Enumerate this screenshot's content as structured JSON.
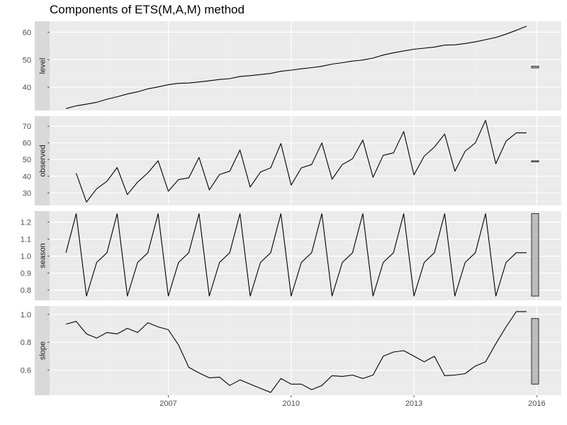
{
  "chart_data": {
    "type": "line",
    "title": "Components of ETS(M,A,M) method",
    "x_ticks": [
      "2007",
      "2010",
      "2013",
      "2016"
    ],
    "xlim": [
      2004.1,
      2016.6
    ],
    "panels": [
      {
        "name": "level",
        "ylim": [
          31.5,
          64.0
        ],
        "y_ticks": [
          40,
          50,
          60
        ],
        "scale_bar": [
          47.0,
          47.6
        ],
        "x": [
          2004.5,
          2004.75,
          2005,
          2005.25,
          2005.5,
          2005.75,
          2006,
          2006.25,
          2006.5,
          2006.75,
          2007,
          2007.25,
          2007.5,
          2007.75,
          2008,
          2008.25,
          2008.5,
          2008.75,
          2009,
          2009.25,
          2009.5,
          2009.75,
          2010,
          2010.25,
          2010.5,
          2010.75,
          2011,
          2011.25,
          2011.5,
          2011.75,
          2012,
          2012.25,
          2012.5,
          2012.75,
          2013,
          2013.25,
          2013.5,
          2013.75,
          2014,
          2014.25,
          2014.5,
          2014.75,
          2015,
          2015.25,
          2015.5,
          2015.75
        ],
        "values": [
          32.2,
          33.2,
          33.8,
          34.5,
          35.6,
          36.5,
          37.5,
          38.3,
          39.4,
          40.1,
          40.9,
          41.4,
          41.5,
          41.9,
          42.3,
          42.8,
          43.1,
          43.9,
          44.2,
          44.6,
          45.0,
          45.8,
          46.2,
          46.7,
          47.1,
          47.6,
          48.4,
          48.9,
          49.5,
          49.9,
          50.6,
          51.7,
          52.5,
          53.2,
          53.8,
          54.2,
          54.6,
          55.3,
          55.4,
          55.9,
          56.5,
          57.3,
          58.1,
          59.3,
          60.7,
          62.2
        ]
      },
      {
        "name": "observed",
        "ylim": [
          22.5,
          76.0
        ],
        "y_ticks": [
          30,
          40,
          50,
          60,
          70
        ],
        "scale_bar": [
          48.6,
          49.3
        ],
        "x": [
          2004.75,
          2005,
          2005.25,
          2005.5,
          2005.75,
          2006,
          2006.25,
          2006.5,
          2006.75,
          2007,
          2007.25,
          2007.5,
          2007.75,
          2008,
          2008.25,
          2008.5,
          2008.75,
          2009,
          2009.25,
          2009.5,
          2009.75,
          2010,
          2010.25,
          2010.5,
          2010.75,
          2011,
          2011.25,
          2011.5,
          2011.75,
          2012,
          2012.25,
          2012.5,
          2012.75,
          2013,
          2013.25,
          2013.5,
          2013.75,
          2014,
          2014.25,
          2014.5,
          2014.75,
          2015,
          2015.25,
          2015.5,
          2015.75
        ],
        "values": [
          41.8,
          24.5,
          32.5,
          37.0,
          45.2,
          29.0,
          36.5,
          42.0,
          49.3,
          31.0,
          38.0,
          39.0,
          51.3,
          31.8,
          41.0,
          43.0,
          55.7,
          33.5,
          42.5,
          45.0,
          59.6,
          34.7,
          45.0,
          47.0,
          60.0,
          38.2,
          47.0,
          50.5,
          61.7,
          39.3,
          52.5,
          54.0,
          66.8,
          40.8,
          52.0,
          57.5,
          65.3,
          43.0,
          55.0,
          60.0,
          73.5,
          47.5,
          61.0,
          66.0,
          66.0
        ]
      },
      {
        "name": "season",
        "ylim": [
          0.74,
          1.265
        ],
        "y_ticks": [
          0.8,
          0.9,
          1.0,
          1.1,
          1.2
        ],
        "y_tick_labels": [
          "0.8",
          "0.9",
          "1.0",
          "1.1",
          "1.2"
        ],
        "scale_bar": [
          0.765,
          1.25
        ],
        "x": [
          2004.5,
          2004.75,
          2005,
          2005.25,
          2005.5,
          2005.75,
          2006,
          2006.25,
          2006.5,
          2006.75,
          2007,
          2007.25,
          2007.5,
          2007.75,
          2008,
          2008.25,
          2008.5,
          2008.75,
          2009,
          2009.25,
          2009.5,
          2009.75,
          2010,
          2010.25,
          2010.5,
          2010.75,
          2011,
          2011.25,
          2011.5,
          2011.75,
          2012,
          2012.25,
          2012.5,
          2012.75,
          2013,
          2013.25,
          2013.5,
          2013.75,
          2014,
          2014.25,
          2014.5,
          2014.75,
          2015,
          2015.25,
          2015.5,
          2015.75
        ],
        "values": [
          1.02,
          1.25,
          0.765,
          0.963,
          1.02,
          1.25,
          0.765,
          0.963,
          1.02,
          1.25,
          0.765,
          0.963,
          1.02,
          1.25,
          0.765,
          0.963,
          1.02,
          1.25,
          0.765,
          0.963,
          1.02,
          1.25,
          0.765,
          0.963,
          1.02,
          1.25,
          0.765,
          0.963,
          1.02,
          1.25,
          0.765,
          0.963,
          1.02,
          1.25,
          0.765,
          0.963,
          1.02,
          1.25,
          0.765,
          0.963,
          1.02,
          1.25,
          0.765,
          0.963,
          1.02,
          1.02
        ]
      },
      {
        "name": "slope",
        "ylim": [
          0.42,
          1.06
        ],
        "y_ticks": [
          0.6,
          0.8,
          1.0
        ],
        "y_tick_labels": [
          "0.6",
          "0.8",
          "1.0"
        ],
        "scale_bar": [
          0.5,
          0.97
        ],
        "x": [
          2004.5,
          2004.75,
          2005,
          2005.25,
          2005.5,
          2005.75,
          2006,
          2006.25,
          2006.5,
          2006.75,
          2007,
          2007.25,
          2007.5,
          2007.75,
          2008,
          2008.25,
          2008.5,
          2008.75,
          2009,
          2009.25,
          2009.5,
          2009.75,
          2010,
          2010.25,
          2010.5,
          2010.75,
          2011,
          2011.25,
          2011.5,
          2011.75,
          2012,
          2012.25,
          2012.5,
          2012.75,
          2013,
          2013.25,
          2013.5,
          2013.75,
          2014,
          2014.25,
          2014.5,
          2014.75,
          2015,
          2015.25,
          2015.5,
          2015.75
        ],
        "values": [
          0.93,
          0.95,
          0.86,
          0.83,
          0.87,
          0.86,
          0.9,
          0.87,
          0.94,
          0.91,
          0.89,
          0.78,
          0.62,
          0.58,
          0.545,
          0.55,
          0.49,
          0.53,
          0.5,
          0.47,
          0.44,
          0.54,
          0.5,
          0.5,
          0.46,
          0.49,
          0.56,
          0.555,
          0.565,
          0.54,
          0.565,
          0.7,
          0.73,
          0.74,
          0.7,
          0.66,
          0.7,
          0.56,
          0.565,
          0.575,
          0.63,
          0.66,
          0.79,
          0.91,
          1.02,
          1.02
        ]
      }
    ]
  }
}
